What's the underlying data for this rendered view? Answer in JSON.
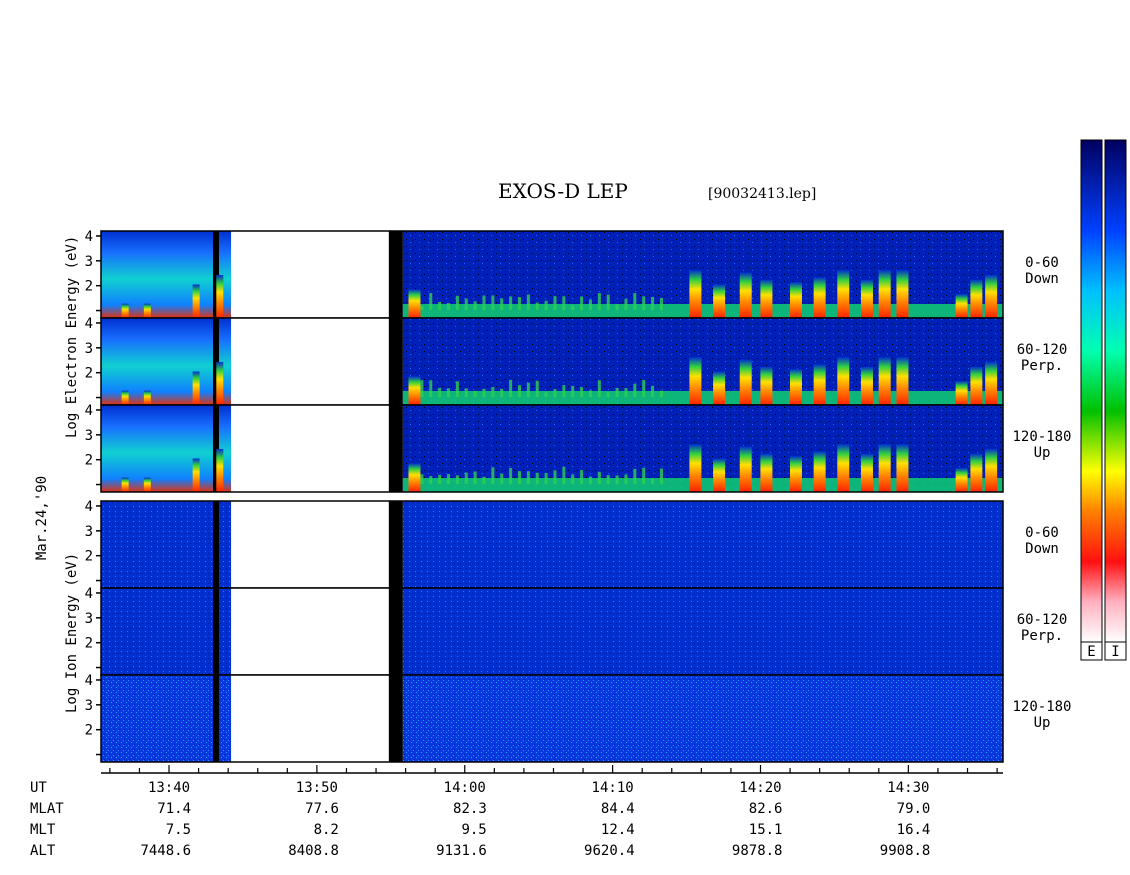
{
  "title": "EXOS-D LEP",
  "file_name": "[90032413.lep]",
  "date_label": "Mar.24,'90",
  "electron_axis_label": [
    "Log",
    "Electron",
    "Energy",
    "(eV)"
  ],
  "ion_axis_label": [
    "Log",
    "Ion",
    "Energy",
    "(eV)"
  ],
  "colorbar": {
    "e_label": "E",
    "i_label": "I"
  },
  "chart_data": {
    "type": "heatmap",
    "x_axis": {
      "label": "UT",
      "ticks": [
        "13:40",
        "13:50",
        "14:00",
        "14:10",
        "14:20",
        "14:30"
      ]
    },
    "y_ticks": [
      "1",
      "2",
      "3",
      "4"
    ],
    "panels": [
      {
        "group": "Electron",
        "pitch_angle": "0-60",
        "direction": "Down"
      },
      {
        "group": "Electron",
        "pitch_angle": "60-120",
        "direction": "Perp."
      },
      {
        "group": "Electron",
        "pitch_angle": "120-180",
        "direction": "Up"
      },
      {
        "group": "Ion",
        "pitch_angle": "0-60",
        "direction": "Down"
      },
      {
        "group": "Ion",
        "pitch_angle": "60-120",
        "direction": "Perp."
      },
      {
        "group": "Ion",
        "pitch_angle": "120-180",
        "direction": "Up"
      }
    ],
    "data_gap": {
      "start": "13:44",
      "end": "13:55"
    },
    "ephemeris": [
      {
        "name": "MLAT",
        "values": [
          "71.4",
          "77.6",
          "82.3",
          "84.4",
          "82.6",
          "79.0"
        ]
      },
      {
        "name": "MLT",
        "values": [
          "7.5",
          "8.2",
          "9.5",
          "12.4",
          "15.1",
          "16.4"
        ]
      },
      {
        "name": "ALT",
        "values": [
          "7448.6",
          "8408.8",
          "9131.6",
          "9620.4",
          "9878.8",
          "9908.8"
        ]
      }
    ]
  }
}
